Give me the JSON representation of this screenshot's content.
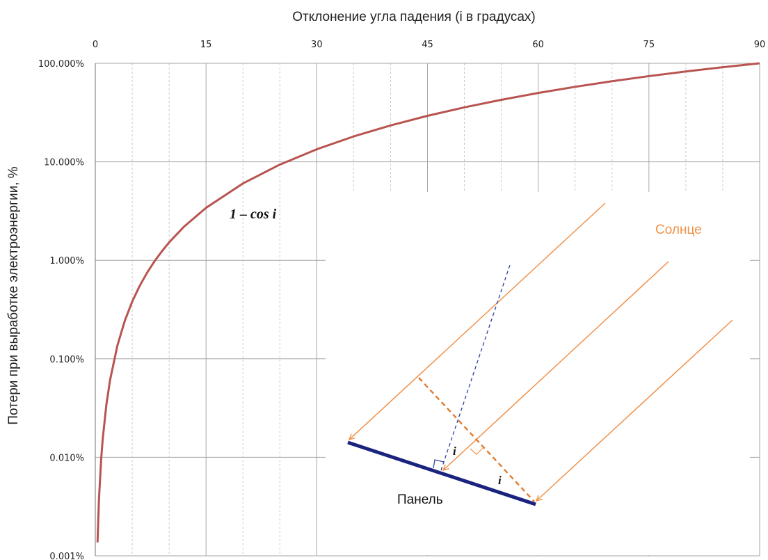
{
  "chart_data": {
    "type": "line",
    "title": "",
    "xlabel": "Отклонение  угла падения (i в градусах)",
    "ylabel": "Потери при выработке электроэнергии, %",
    "xlim": [
      0,
      90
    ],
    "x_ticks": [
      0,
      15,
      30,
      45,
      60,
      75,
      90
    ],
    "y_scale": "log",
    "ylim": [
      1e-05,
      1.0
    ],
    "y_ticks": [
      1e-05,
      0.0001,
      0.001,
      0.01,
      0.1,
      1.0
    ],
    "y_tick_labels": [
      "0.001%",
      "0.010%",
      "0.100%",
      "1.000%",
      "10.000%",
      "100.000%"
    ],
    "grid": true,
    "series": [
      {
        "name": "",
        "label": "1 – cos i",
        "color": "#b85450",
        "x": [
          0.3,
          0.5,
          0.8,
          1,
          1.5,
          2,
          3,
          4,
          5,
          6,
          7,
          8,
          9,
          10,
          12,
          15,
          20,
          25,
          30,
          35,
          40,
          45,
          50,
          55,
          60,
          65,
          70,
          75,
          80,
          85,
          90
        ],
        "y": [
          1.37e-05,
          3.81e-05,
          9.75e-05,
          0.000152,
          0.000343,
          0.000609,
          0.00137,
          0.00244,
          0.00381,
          0.00548,
          0.00745,
          0.00973,
          0.0123,
          0.0152,
          0.0219,
          0.0341,
          0.0603,
          0.0937,
          0.134,
          0.181,
          0.234,
          0.293,
          0.357,
          0.426,
          0.5,
          0.577,
          0.658,
          0.741,
          0.826,
          0.913,
          1.0
        ]
      }
    ]
  },
  "diagram": {
    "sun_label": "Солнце",
    "panel_label": "Панель",
    "angle_label_1": "i",
    "angle_label_2": "i",
    "colors": {
      "rays": "#f0914a",
      "panel": "#1a237e",
      "normal": "#2c3e9e",
      "curve": "#b85450",
      "grid_major": "#a6a6a6",
      "grid_minor": "#c8c8c8"
    }
  }
}
